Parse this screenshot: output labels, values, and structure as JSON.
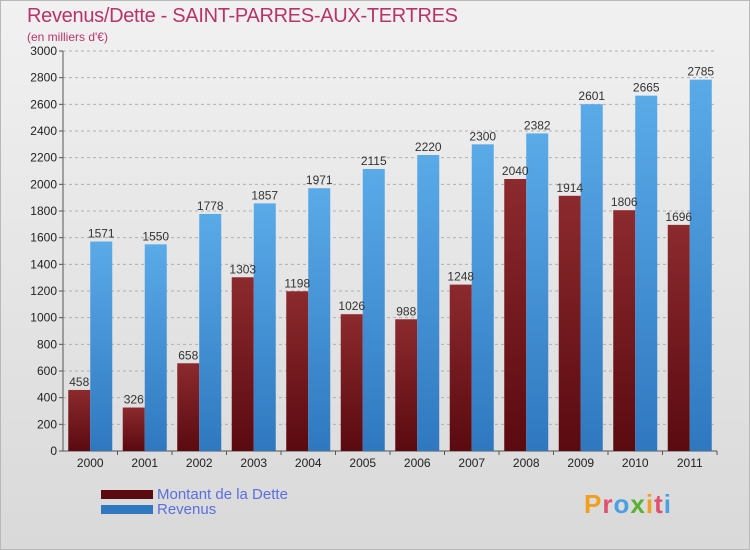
{
  "header": {
    "title": "Revenus/Dette - SAINT-PARRES-AUX-TERTRES",
    "subtitle": "(en milliers d'€)"
  },
  "legend": {
    "debt_label": "Montant de la Dette",
    "revenue_label": "Revenus"
  },
  "logo": {
    "text": "Proxiti",
    "letters": [
      "P",
      "r",
      "o",
      "x",
      "i",
      "t",
      "i"
    ],
    "colors": [
      "#f0a020",
      "#e05070",
      "#4aa0e0",
      "#5ab030",
      "#f0a020",
      "#e05070",
      "#4aa0e0"
    ]
  },
  "colors": {
    "debt_top": "#8c2a2e",
    "debt_bottom": "#5a0a10",
    "revenue_top": "#5aaae8",
    "revenue_bottom": "#2f78c0",
    "grid": "#b0b0b0",
    "axis_text": "#222222",
    "label_text": "#333333"
  },
  "chart_data": {
    "type": "bar",
    "categories": [
      "2000",
      "2001",
      "2002",
      "2003",
      "2004",
      "2005",
      "2006",
      "2007",
      "2008",
      "2009",
      "2010",
      "2011"
    ],
    "series": [
      {
        "name": "Montant de la Dette",
        "values": [
          458,
          326,
          658,
          1303,
          1198,
          1026,
          988,
          1248,
          2040,
          1914,
          1806,
          1696
        ]
      },
      {
        "name": "Revenus",
        "values": [
          1571,
          1550,
          1778,
          1857,
          1971,
          2115,
          2220,
          2300,
          2382,
          2601,
          2665,
          2785
        ]
      }
    ],
    "yticks": [
      0,
      200,
      400,
      600,
      800,
      1000,
      1200,
      1400,
      1600,
      1800,
      2000,
      2200,
      2400,
      2600,
      2800,
      3000
    ],
    "ylim": [
      0,
      3000
    ],
    "grid": true,
    "legend_position": "bottom-left"
  }
}
